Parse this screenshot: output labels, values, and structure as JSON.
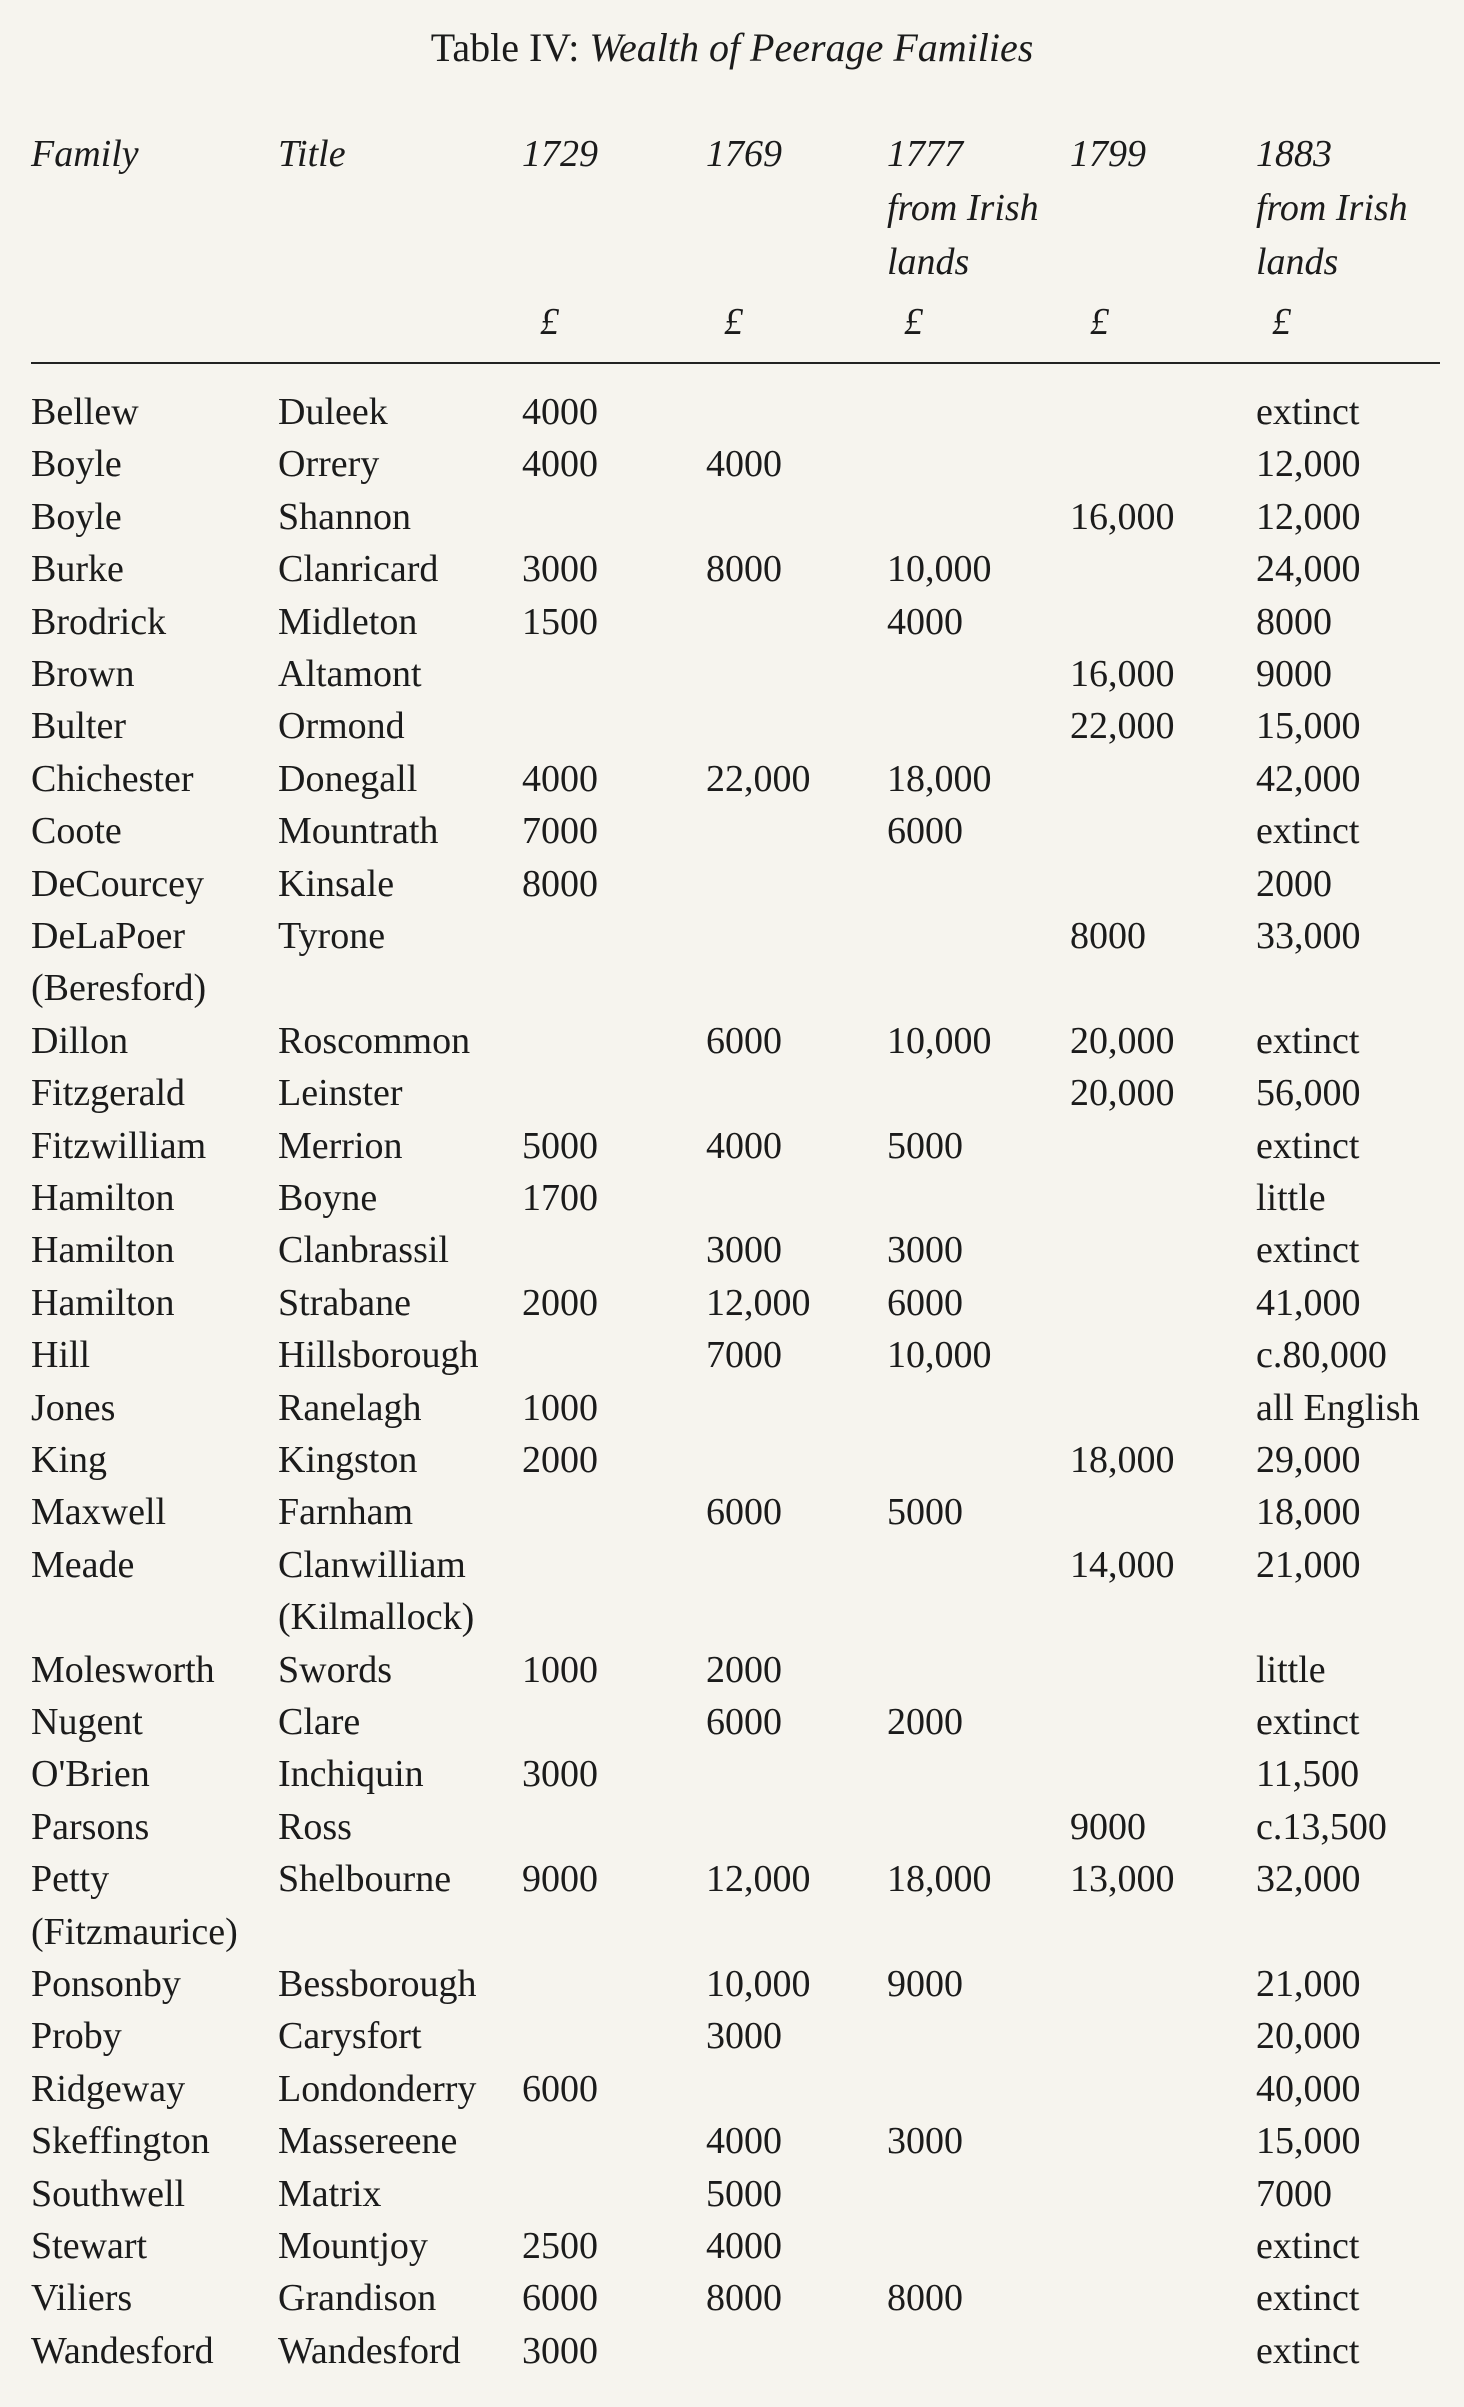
{
  "title": {
    "label": "Table IV:",
    "text": "Wealth of Peerage Families"
  },
  "columns": [
    [
      "Family"
    ],
    [
      "Title"
    ],
    [
      "1729"
    ],
    [
      "1769"
    ],
    [
      "1777",
      "from Irish",
      "lands"
    ],
    [
      "1799"
    ],
    [
      "1883",
      "from Irish",
      "lands"
    ]
  ],
  "currency": [
    "£",
    "£",
    "£",
    "£",
    "£"
  ],
  "rows": [
    [
      "Bellew",
      "Duleek",
      "4000",
      null,
      null,
      null,
      "extinct"
    ],
    [
      "Boyle",
      "Orrery",
      "4000",
      "4000",
      null,
      null,
      "12,000"
    ],
    [
      "Boyle",
      "Shannon",
      null,
      null,
      null,
      "16,000",
      "12,000"
    ],
    [
      "Burke",
      "Clanricard",
      "3000",
      "8000",
      "10,000",
      null,
      "24,000"
    ],
    [
      "Brodrick",
      "Midleton",
      "1500",
      null,
      "4000",
      null,
      "8000"
    ],
    [
      "Brown",
      "Altamont",
      null,
      null,
      null,
      "16,000",
      "9000"
    ],
    [
      "Bulter",
      "Ormond",
      null,
      null,
      null,
      "22,000",
      "15,000"
    ],
    [
      "Chichester",
      "Donegall",
      "4000",
      "22,000",
      "18,000",
      null,
      "42,000"
    ],
    [
      "Coote",
      "Mountrath",
      "7000",
      null,
      "6000",
      null,
      "extinct"
    ],
    [
      "DeCourcey",
      "Kinsale",
      "8000",
      null,
      null,
      null,
      "2000"
    ],
    [
      "DeLaPoer",
      "Tyrone",
      null,
      null,
      null,
      "8000",
      "33,000"
    ],
    [
      "(Beresford)",
      null,
      null,
      null,
      null,
      null,
      null
    ],
    [
      "Dillon",
      "Roscommon",
      null,
      "6000",
      "10,000",
      "20,000",
      "extinct"
    ],
    [
      "Fitzgerald",
      "Leinster",
      null,
      null,
      null,
      "20,000",
      "56,000"
    ],
    [
      "Fitzwilliam",
      "Merrion",
      "5000",
      "4000",
      "5000",
      null,
      "extinct"
    ],
    [
      "Hamilton",
      "Boyne",
      "1700",
      null,
      null,
      null,
      "little"
    ],
    [
      "Hamilton",
      "Clanbrassil",
      null,
      "3000",
      "3000",
      null,
      "extinct"
    ],
    [
      "Hamilton",
      "Strabane",
      "2000",
      "12,000",
      "6000",
      null,
      "41,000"
    ],
    [
      "Hill",
      "Hillsborough",
      null,
      "7000",
      "10,000",
      null,
      "c.80,000"
    ],
    [
      "Jones",
      "Ranelagh",
      "1000",
      null,
      null,
      null,
      "all English"
    ],
    [
      "King",
      "Kingston",
      "2000",
      null,
      null,
      "18,000",
      "29,000"
    ],
    [
      "Maxwell",
      "Farnham",
      null,
      "6000",
      "5000",
      null,
      "18,000"
    ],
    [
      "Meade",
      "Clanwilliam",
      null,
      null,
      null,
      "14,000",
      "21,000"
    ],
    [
      null,
      "(Kilmallock)",
      null,
      null,
      null,
      null,
      null
    ],
    [
      "Molesworth",
      "Swords",
      "1000",
      "2000",
      null,
      null,
      "little"
    ],
    [
      "Nugent",
      "Clare",
      null,
      "6000",
      "2000",
      null,
      "extinct"
    ],
    [
      "O'Brien",
      "Inchiquin",
      "3000",
      null,
      null,
      null,
      "11,500"
    ],
    [
      "Parsons",
      "Ross",
      null,
      null,
      null,
      "9000",
      "c.13,500"
    ],
    [
      "Petty",
      "Shelbourne",
      "9000",
      "12,000",
      "18,000",
      "13,000",
      "32,000"
    ],
    [
      "(Fitzmaurice)",
      null,
      null,
      null,
      null,
      null,
      null
    ],
    [
      "Ponsonby",
      "Bessborough",
      null,
      "10,000",
      "9000",
      null,
      "21,000"
    ],
    [
      "Proby",
      "Carysfort",
      null,
      "3000",
      null,
      null,
      "20,000"
    ],
    [
      "Ridgeway",
      "Londonderry",
      "6000",
      null,
      null,
      null,
      "40,000"
    ],
    [
      "Skeffington",
      "Massereene",
      null,
      "4000",
      "3000",
      null,
      "15,000"
    ],
    [
      "Southwell",
      "Matrix",
      null,
      "5000",
      null,
      null,
      "7000"
    ],
    [
      "Stewart",
      "Mountjoy",
      "2500",
      "4000",
      null,
      null,
      "extinct"
    ],
    [
      "Viliers",
      "Grandison",
      "6000",
      "8000",
      "8000",
      null,
      "extinct"
    ],
    [
      "Wandesford",
      "Wandesford",
      "3000",
      null,
      null,
      null,
      "extinct"
    ]
  ]
}
